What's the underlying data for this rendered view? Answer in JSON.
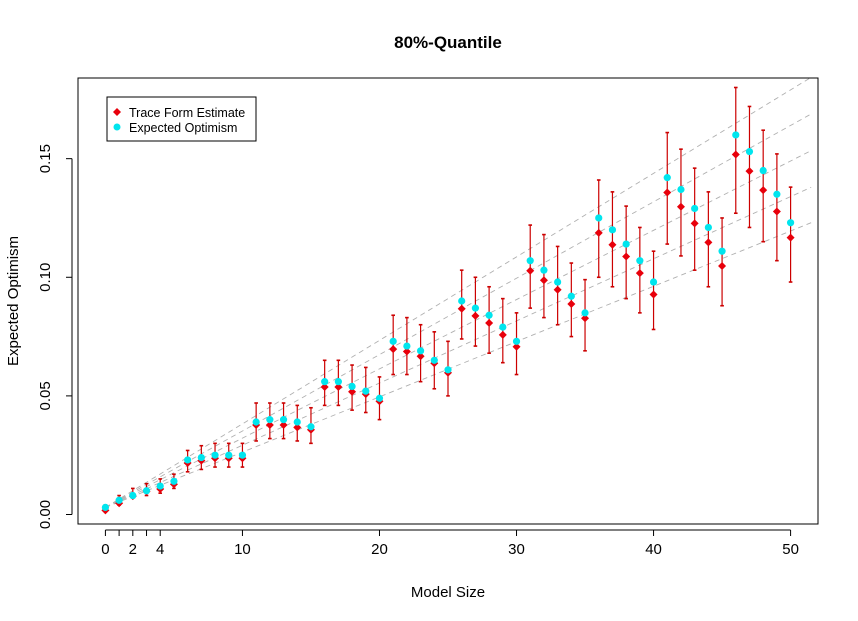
{
  "chart_data": {
    "type": "scatter",
    "title": "80%-Quantile",
    "xlabel": "Model Size",
    "ylabel": "Expected Optimism",
    "xlim": [
      -2,
      52
    ],
    "ylim": [
      -0.004,
      0.184
    ],
    "xticks": [
      0,
      2,
      4,
      10,
      20,
      30,
      40,
      50
    ],
    "xtick_labels": [
      "0",
      "2",
      "4",
      "10",
      "20",
      "30",
      "40",
      "50"
    ],
    "yticks": [
      0.0,
      0.05,
      0.1,
      0.15
    ],
    "ytick_labels": [
      "0.00",
      "0.05",
      "0.10",
      "0.15"
    ],
    "legend": {
      "position": "top-left",
      "entries": [
        {
          "label": "Trace Form Estimate",
          "color": "#e8000b"
        },
        {
          "label": "Expected Optimism",
          "color": "#00e5ee"
        }
      ]
    },
    "colors": {
      "trace": "#e8000b",
      "errorbar": "#cc0000",
      "expected": "#00e5ee",
      "refline": "#b0b0b0"
    },
    "reference_slopes": [
      0.00233,
      0.00262,
      0.00292,
      0.00322,
      0.00352
    ],
    "series": [
      {
        "name": "Trace Form Estimate",
        "x": [
          0,
          1,
          2,
          3,
          4,
          5,
          6,
          7,
          8,
          9,
          10,
          11,
          12,
          13,
          14,
          15,
          16,
          17,
          18,
          19,
          20,
          21,
          22,
          23,
          24,
          25,
          26,
          27,
          28,
          29,
          30,
          31,
          32,
          33,
          34,
          35,
          36,
          37,
          38,
          39,
          40,
          41,
          42,
          43,
          44,
          45,
          46,
          47,
          48,
          49,
          50
        ],
        "y": [
          0.003,
          0.006,
          0.009,
          0.011,
          0.012,
          0.014,
          0.023,
          0.024,
          0.025,
          0.025,
          0.025,
          0.039,
          0.039,
          0.039,
          0.038,
          0.037,
          0.055,
          0.055,
          0.053,
          0.052,
          0.049,
          0.071,
          0.07,
          0.068,
          0.065,
          0.061,
          0.088,
          0.085,
          0.082,
          0.077,
          0.072,
          0.104,
          0.1,
          0.096,
          0.09,
          0.084,
          0.12,
          0.115,
          0.11,
          0.103,
          0.094,
          0.137,
          0.131,
          0.124,
          0.116,
          0.106,
          0.153,
          0.146,
          0.138,
          0.129,
          0.118
        ],
        "lower": [
          0.002,
          0.004,
          0.007,
          0.008,
          0.009,
          0.011,
          0.018,
          0.019,
          0.02,
          0.02,
          0.02,
          0.031,
          0.032,
          0.032,
          0.031,
          0.03,
          0.046,
          0.046,
          0.044,
          0.043,
          0.04,
          0.059,
          0.059,
          0.056,
          0.053,
          0.05,
          0.074,
          0.071,
          0.068,
          0.064,
          0.059,
          0.087,
          0.083,
          0.08,
          0.075,
          0.069,
          0.1,
          0.096,
          0.091,
          0.085,
          0.078,
          0.114,
          0.109,
          0.103,
          0.096,
          0.088,
          0.127,
          0.121,
          0.115,
          0.107,
          0.098
        ],
        "upper": [
          0.004,
          0.008,
          0.011,
          0.013,
          0.015,
          0.017,
          0.027,
          0.029,
          0.03,
          0.03,
          0.03,
          0.047,
          0.047,
          0.047,
          0.046,
          0.045,
          0.065,
          0.065,
          0.063,
          0.062,
          0.058,
          0.084,
          0.083,
          0.08,
          0.077,
          0.073,
          0.103,
          0.1,
          0.096,
          0.091,
          0.085,
          0.122,
          0.118,
          0.113,
          0.106,
          0.099,
          0.141,
          0.136,
          0.13,
          0.121,
          0.111,
          0.161,
          0.154,
          0.146,
          0.136,
          0.125,
          0.18,
          0.172,
          0.162,
          0.152,
          0.138
        ]
      },
      {
        "name": "Expected Optimism",
        "x": [
          0,
          1,
          2,
          3,
          4,
          5,
          6,
          7,
          8,
          9,
          10,
          11,
          12,
          13,
          14,
          15,
          16,
          17,
          18,
          19,
          20,
          21,
          22,
          23,
          24,
          25,
          26,
          27,
          28,
          29,
          30,
          31,
          32,
          33,
          34,
          35,
          36,
          37,
          38,
          39,
          40,
          41,
          42,
          43,
          44,
          45,
          46,
          47,
          48,
          49,
          50
        ],
        "y": [
          0.003,
          0.006,
          0.008,
          0.01,
          0.012,
          0.014,
          0.023,
          0.024,
          0.025,
          0.025,
          0.025,
          0.039,
          0.04,
          0.04,
          0.039,
          0.037,
          0.056,
          0.056,
          0.054,
          0.052,
          0.049,
          0.073,
          0.071,
          0.069,
          0.065,
          0.061,
          0.09,
          0.087,
          0.084,
          0.079,
          0.073,
          0.107,
          0.103,
          0.098,
          0.092,
          0.085,
          0.125,
          0.12,
          0.114,
          0.107,
          0.098,
          0.142,
          0.137,
          0.129,
          0.121,
          0.111,
          0.16,
          0.153,
          0.145,
          0.135,
          0.123
        ]
      }
    ]
  }
}
